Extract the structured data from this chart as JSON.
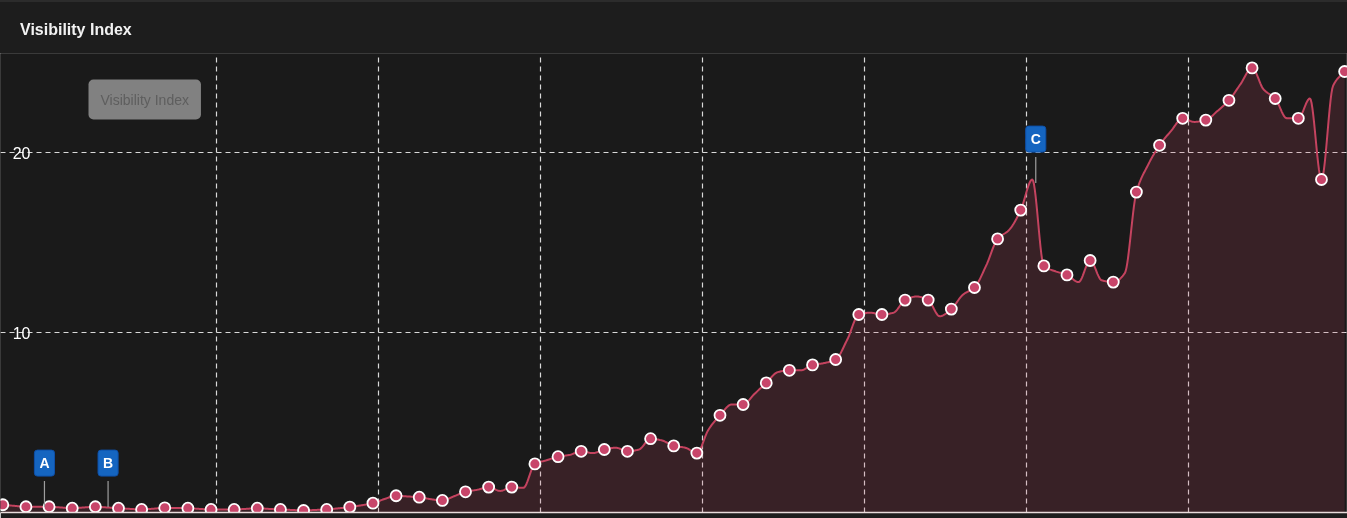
{
  "chart_data": {
    "type": "area",
    "title": "Visibility Index",
    "annotations": [
      "Visibility Index",
      {
        "text": "A",
        "y": 0.3
      },
      {
        "text": "B",
        "y": 0.3
      },
      {
        "text": "C",
        "y": 18.3
      }
    ],
    "categories": [
      null,
      null,
      null,
      null,
      null,
      null,
      null,
      null,
      null,
      null,
      null,
      null,
      null,
      null,
      null,
      null,
      null,
      null,
      null,
      null,
      null,
      null,
      null,
      null,
      null,
      null,
      null,
      null,
      null,
      null,
      null,
      null,
      null,
      null,
      null,
      null,
      null,
      null,
      null,
      null,
      null,
      null,
      null,
      null,
      null,
      null,
      null,
      null,
      null,
      null,
      null,
      null,
      null,
      null,
      null,
      null,
      null,
      null,
      null,
      null,
      null,
      null,
      null,
      null,
      null,
      null,
      null,
      null,
      null,
      null,
      null,
      null,
      null,
      null,
      null,
      null,
      null,
      null,
      null,
      null,
      null,
      null,
      null,
      null,
      null,
      null,
      null,
      null,
      null,
      null,
      null,
      null,
      null,
      null,
      null,
      null,
      null,
      null,
      null,
      null,
      null,
      null,
      null,
      null,
      null,
      null,
      null,
      null,
      null,
      null,
      null,
      null,
      null,
      null,
      null,
      null,
      null
    ],
    "ylim": [
      0,
      25.5
    ],
    "yticks": [
      10,
      20
    ],
    "tick_labels": "y",
    "grid": true,
    "series": [
      {
        "color": "#c4435f",
        "line_style": "solid",
        "values": [
          0.43,
          0.37,
          0.32,
          0.32,
          0.32,
          0.28,
          0.24,
          0.28,
          0.32,
          0.28,
          0.24,
          0.2,
          0.17,
          0.21,
          0.26,
          0.25,
          0.24,
          0.2,
          0.17,
          0.17,
          0.17,
          0.2,
          0.24,
          0.2,
          0.17,
          0.14,
          0.11,
          0.14,
          0.17,
          0.23,
          0.3,
          0.4,
          0.52,
          0.75,
          0.93,
          0.89,
          0.85,
          0.74,
          0.67,
          0.9,
          1.15,
          1.26,
          1.41,
          1.2,
          1.41,
          1.37,
          2.7,
          2.9,
          3.1,
          3.2,
          3.4,
          3.3,
          3.5,
          3.6,
          3.4,
          3.5,
          4.1,
          4.0,
          3.7,
          3.6,
          3.3,
          4.6,
          5.4,
          6.0,
          6.0,
          6.6,
          7.2,
          7.8,
          7.9,
          7.9,
          8.2,
          8.3,
          8.5,
          9.6,
          11.0,
          11.1,
          11.0,
          11.1,
          11.8,
          12.0,
          11.8,
          10.9,
          11.3,
          12.1,
          12.5,
          13.7,
          15.2,
          15.7,
          16.8,
          18.5,
          13.7,
          13.4,
          13.2,
          12.8,
          14.0,
          12.9,
          12.8,
          13.3,
          17.8,
          19.3,
          20.4,
          21.2,
          21.9,
          21.7,
          21.8,
          22.3,
          22.9,
          23.8,
          24.7,
          23.5,
          23.0,
          21.9,
          21.9,
          23.0,
          18.5,
          23.7,
          24.5
        ]
      },
      {
        "type": "scatter",
        "color": "#c8456a",
        "marker": "circle",
        "values": [
          0.43,
          null,
          0.32,
          null,
          0.32,
          null,
          0.24,
          null,
          0.32,
          null,
          0.24,
          null,
          0.17,
          null,
          0.26,
          null,
          0.24,
          null,
          0.17,
          null,
          0.17,
          null,
          0.24,
          null,
          0.17,
          null,
          0.11,
          null,
          0.17,
          null,
          0.3,
          null,
          0.52,
          null,
          0.93,
          null,
          0.85,
          null,
          0.67,
          null,
          1.15,
          null,
          1.41,
          null,
          1.41,
          null,
          2.7,
          null,
          3.1,
          null,
          3.4,
          null,
          3.5,
          null,
          3.4,
          null,
          4.1,
          null,
          3.7,
          null,
          3.3,
          null,
          5.4,
          null,
          6.0,
          null,
          7.2,
          null,
          7.9,
          null,
          8.2,
          null,
          8.5,
          null,
          11.0,
          null,
          11.0,
          null,
          11.8,
          null,
          11.8,
          null,
          11.3,
          null,
          12.5,
          null,
          15.2,
          null,
          16.8,
          null,
          13.7,
          null,
          13.2,
          null,
          14.0,
          null,
          12.8,
          null,
          17.8,
          null,
          20.4,
          null,
          21.9,
          null,
          21.8,
          null,
          22.9,
          null,
          24.7,
          null,
          23.0,
          null,
          21.9,
          null,
          18.5,
          null,
          24.5
        ]
      }
    ]
  }
}
